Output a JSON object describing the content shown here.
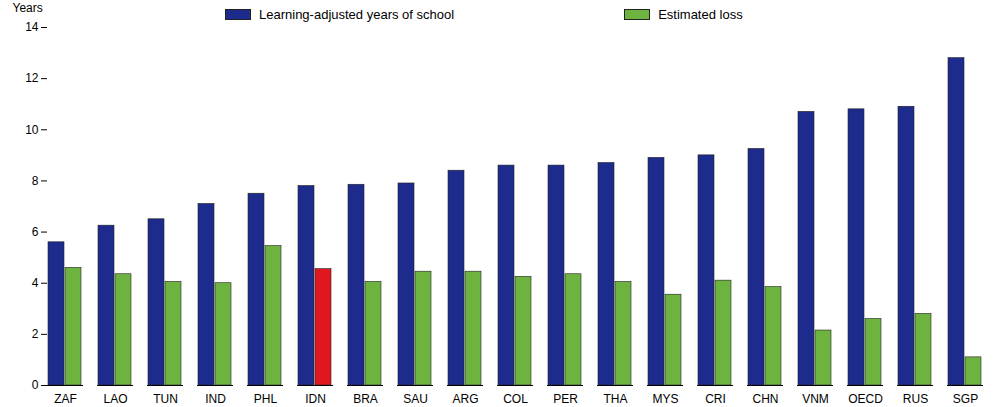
{
  "chart_data": {
    "type": "bar",
    "categories": [
      "ZAF",
      "LAO",
      "TUN",
      "IND",
      "PHL",
      "IDN",
      "BRA",
      "SAU",
      "ARG",
      "COL",
      "PER",
      "THA",
      "MYS",
      "CRI",
      "CHN",
      "VNM",
      "OECD",
      "RUS",
      "SGP"
    ],
    "series": [
      {
        "name": "Learning-adjusted years of school",
        "color": "#1c2b8c",
        "values": [
          5.6,
          6.25,
          6.5,
          7.1,
          7.5,
          7.8,
          7.85,
          7.9,
          8.4,
          8.6,
          8.6,
          8.7,
          8.9,
          9.0,
          9.25,
          10.7,
          10.8,
          10.9,
          12.8
        ]
      },
      {
        "name": "Estimated loss",
        "color": "#6db33f",
        "colors": [
          "#6db33f",
          "#6db33f",
          "#6db33f",
          "#6db33f",
          "#6db33f",
          "#e0171f",
          "#6db33f",
          "#6db33f",
          "#6db33f",
          "#6db33f",
          "#6db33f",
          "#6db33f",
          "#6db33f",
          "#6db33f",
          "#6db33f",
          "#6db33f",
          "#6db33f",
          "#6db33f",
          "#6db33f"
        ],
        "values": [
          4.6,
          4.35,
          4.05,
          4.0,
          5.45,
          4.55,
          4.05,
          4.45,
          4.45,
          4.25,
          4.35,
          4.05,
          3.55,
          4.1,
          3.85,
          2.15,
          2.6,
          2.8,
          1.1
        ]
      }
    ],
    "y_label": "Years",
    "ylim": [
      0,
      14
    ],
    "yticks": [
      0,
      2,
      4,
      6,
      8,
      10,
      12,
      14
    ],
    "grid": false,
    "legend": "top"
  }
}
